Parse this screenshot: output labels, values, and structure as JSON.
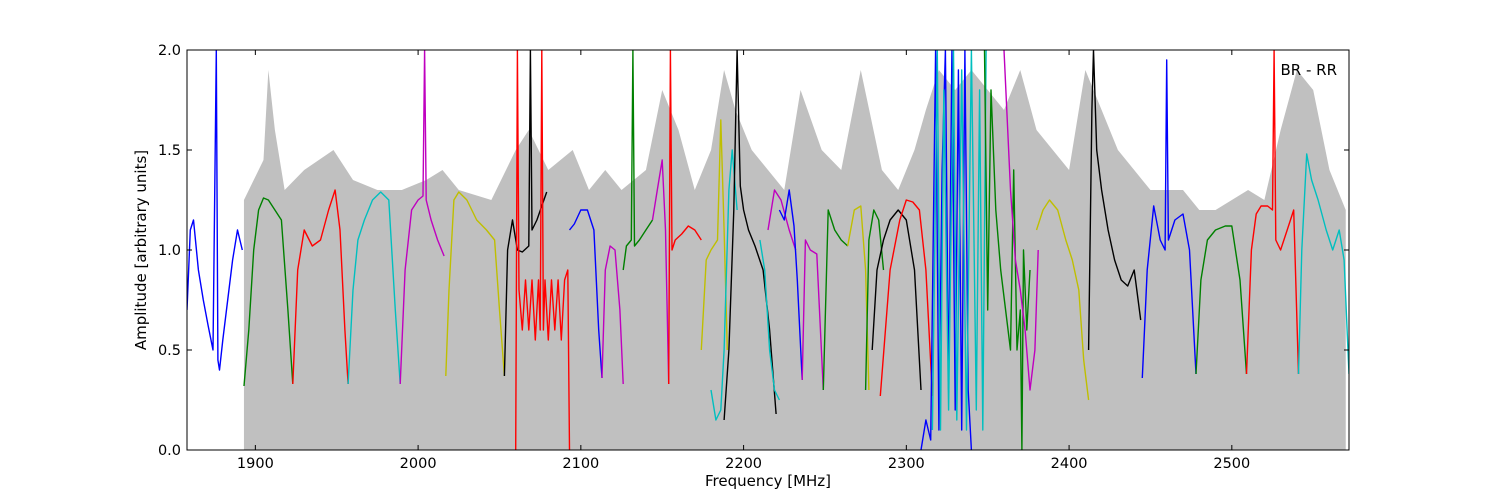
{
  "chart_data": {
    "type": "line",
    "title": "",
    "xlabel": "Frequency [MHz]",
    "ylabel": "Amplitude [arbitrary units]",
    "xlim": [
      1858,
      2572
    ],
    "ylim": [
      0,
      2.0
    ],
    "xticks": [
      1900,
      2000,
      2100,
      2200,
      2300,
      2400,
      2500
    ],
    "yticks": [
      0.0,
      0.5,
      1.0,
      1.5,
      2.0
    ],
    "xtick_labels": [
      "1900",
      "2000",
      "2100",
      "2200",
      "2300",
      "2400",
      "2500"
    ],
    "ytick_labels": [
      "0.0",
      "0.5",
      "1.0",
      "1.5",
      "2.0"
    ],
    "annotation": "BR - RR",
    "grid": false,
    "legend": "none",
    "colors": {
      "background": "#c0c0c0",
      "blue": "#0000ff",
      "green": "#008000",
      "red": "#ff0000",
      "cyan": "#00bfbf",
      "magenta": "#bf00bf",
      "yellow": "#bfbf00",
      "black": "#000000"
    },
    "background_envelope": {
      "color": "#c0c0c0",
      "x": [
        1893,
        1905,
        1908,
        1912,
        1918,
        1930,
        1948,
        1960,
        1975,
        1990,
        2005,
        2015,
        2025,
        2045,
        2060,
        2068,
        2080,
        2095,
        2105,
        2115,
        2125,
        2140,
        2150,
        2160,
        2170,
        2180,
        2188,
        2195,
        2205,
        2215,
        2225,
        2235,
        2248,
        2260,
        2272,
        2285,
        2295,
        2305,
        2312,
        2320,
        2330,
        2340,
        2350,
        2360,
        2370,
        2380,
        2390,
        2400,
        2410,
        2420,
        2430,
        2440,
        2450,
        2460,
        2470,
        2480,
        2490,
        2500,
        2510,
        2520,
        2530,
        2540,
        2550,
        2560,
        2570
      ],
      "y": [
        1.25,
        1.45,
        1.9,
        1.6,
        1.3,
        1.4,
        1.5,
        1.35,
        1.3,
        1.3,
        1.35,
        1.4,
        1.3,
        1.25,
        1.5,
        1.6,
        1.4,
        1.5,
        1.3,
        1.4,
        1.3,
        1.4,
        1.8,
        1.6,
        1.3,
        1.5,
        1.9,
        1.7,
        1.5,
        1.4,
        1.3,
        1.8,
        1.5,
        1.4,
        1.9,
        1.4,
        1.3,
        1.5,
        1.7,
        1.9,
        1.8,
        1.9,
        1.8,
        1.7,
        1.9,
        1.6,
        1.5,
        1.4,
        1.9,
        1.7,
        1.5,
        1.4,
        1.3,
        1.3,
        1.3,
        1.2,
        1.2,
        1.25,
        1.3,
        1.25,
        1.6,
        1.9,
        1.8,
        1.4,
        1.2
      ]
    },
    "series": [
      {
        "color": "#0000ff",
        "x": [
          1858,
          1860,
          1862,
          1865,
          1868,
          1871,
          1874,
          1876,
          1877,
          1878,
          1880,
          1883,
          1886,
          1889,
          1892
        ],
        "y": [
          0.7,
          1.1,
          1.15,
          0.9,
          0.75,
          0.62,
          0.5,
          2.0,
          0.45,
          0.4,
          0.55,
          0.75,
          0.95,
          1.1,
          1.0
        ]
      },
      {
        "color": "#008000",
        "x": [
          1893,
          1896,
          1899,
          1902,
          1905,
          1908,
          1912,
          1916,
          1920,
          1923
        ],
        "y": [
          0.32,
          0.6,
          1.0,
          1.2,
          1.26,
          1.25,
          1.2,
          1.15,
          0.7,
          0.33
        ]
      },
      {
        "color": "#ff0000",
        "x": [
          1923,
          1926,
          1930,
          1935,
          1940,
          1945,
          1949,
          1952,
          1955,
          1957
        ],
        "y": [
          0.33,
          0.9,
          1.1,
          1.02,
          1.05,
          1.2,
          1.3,
          1.1,
          0.6,
          0.33
        ]
      },
      {
        "color": "#00bfbf",
        "x": [
          1957,
          1960,
          1963,
          1967,
          1972,
          1977,
          1982,
          1986,
          1989
        ],
        "y": [
          0.33,
          0.8,
          1.05,
          1.15,
          1.25,
          1.29,
          1.25,
          0.7,
          0.33
        ]
      },
      {
        "color": "#bf00bf",
        "x": [
          1989,
          1992,
          1996,
          2000,
          2003,
          2004,
          2005,
          2008,
          2012,
          2016
        ],
        "y": [
          0.33,
          0.9,
          1.2,
          1.25,
          1.27,
          2.0,
          1.25,
          1.15,
          1.05,
          0.97
        ]
      },
      {
        "color": "#bfbf00",
        "x": [
          2017,
          2019,
          2022,
          2025,
          2030,
          2036,
          2042,
          2047,
          2050,
          2053
        ],
        "y": [
          0.37,
          0.8,
          1.25,
          1.29,
          1.25,
          1.15,
          1.1,
          1.05,
          0.7,
          0.37
        ]
      },
      {
        "color": "#000000",
        "x": [
          2053,
          2055,
          2058,
          2061,
          2064,
          2068,
          2069,
          2070,
          2073,
          2076,
          2079
        ],
        "y": [
          0.37,
          1.0,
          1.15,
          1.0,
          0.99,
          1.02,
          2.0,
          1.1,
          1.15,
          1.22,
          1.29
        ]
      },
      {
        "color": "#ff0000",
        "x": [
          2060,
          2061,
          2062,
          2064,
          2066,
          2068,
          2070,
          2072,
          2074,
          2075,
          2076,
          2077,
          2078,
          2080,
          2082,
          2084,
          2086,
          2088,
          2090,
          2092,
          2093
        ],
        "y": [
          0.0,
          2.0,
          0.8,
          0.6,
          0.85,
          0.6,
          0.85,
          0.55,
          0.85,
          0.6,
          2.0,
          0.6,
          0.85,
          0.55,
          0.85,
          0.6,
          0.85,
          0.55,
          0.85,
          0.9,
          0.0
        ]
      },
      {
        "color": "#0000ff",
        "x": [
          2093,
          2096,
          2100,
          2104,
          2108,
          2111,
          2113
        ],
        "y": [
          1.1,
          1.13,
          1.2,
          1.2,
          1.1,
          0.6,
          0.36
        ]
      },
      {
        "color": "#bf00bf",
        "x": [
          2113,
          2115,
          2118,
          2121,
          2124,
          2126
        ],
        "y": [
          0.36,
          0.9,
          1.02,
          1.0,
          0.7,
          0.33
        ]
      },
      {
        "color": "#008000",
        "x": [
          2126,
          2128,
          2131,
          2132,
          2133,
          2136,
          2140,
          2144
        ],
        "y": [
          0.9,
          1.02,
          1.05,
          2.0,
          1.02,
          1.05,
          1.1,
          1.15
        ]
      },
      {
        "color": "#bf00bf",
        "x": [
          2144,
          2147,
          2150,
          2152,
          2154
        ],
        "y": [
          1.15,
          1.3,
          1.45,
          1.1,
          0.33
        ]
      },
      {
        "color": "#ff0000",
        "x": [
          2154,
          2155,
          2156,
          2158,
          2162,
          2166,
          2170,
          2174
        ],
        "y": [
          0.33,
          2.0,
          1.0,
          1.05,
          1.08,
          1.12,
          1.1,
          1.05
        ]
      },
      {
        "color": "#bfbf00",
        "x": [
          2174,
          2177,
          2180,
          2184,
          2186,
          2188,
          2190
        ],
        "y": [
          0.5,
          0.95,
          1.0,
          1.05,
          1.65,
          1.1,
          0.5
        ]
      },
      {
        "color": "#00bfbf",
        "x": [
          2180,
          2183,
          2186,
          2188,
          2191,
          2193,
          2196
        ],
        "y": [
          0.3,
          0.15,
          0.2,
          0.5,
          1.3,
          1.5,
          1.2
        ]
      },
      {
        "color": "#000000",
        "x": [
          2188,
          2191,
          2194,
          2196,
          2198,
          2200,
          2203,
          2207,
          2212,
          2216,
          2220
        ],
        "y": [
          0.15,
          0.5,
          1.2,
          2.0,
          1.32,
          1.2,
          1.1,
          1.02,
          0.9,
          0.6,
          0.18
        ]
      },
      {
        "color": "#00bfbf",
        "x": [
          2210,
          2213,
          2216,
          2219,
          2222
        ],
        "y": [
          1.05,
          0.9,
          0.5,
          0.3,
          0.25
        ]
      },
      {
        "color": "#bf00bf",
        "x": [
          2215,
          2219,
          2223,
          2228,
          2232
        ],
        "y": [
          1.1,
          1.3,
          1.25,
          1.1,
          1.0
        ]
      },
      {
        "color": "#0000ff",
        "x": [
          2222,
          2225,
          2228,
          2231,
          2233,
          2236
        ],
        "y": [
          1.2,
          1.15,
          1.3,
          1.12,
          0.85,
          0.35
        ]
      },
      {
        "color": "#bf00bf",
        "x": [
          2236,
          2238,
          2241,
          2245,
          2249
        ],
        "y": [
          0.35,
          1.05,
          1.0,
          0.98,
          0.3
        ]
      },
      {
        "color": "#008000",
        "x": [
          2249,
          2252,
          2256,
          2260,
          2264
        ],
        "y": [
          0.3,
          1.2,
          1.1,
          1.05,
          1.02
        ]
      },
      {
        "color": "#bfbf00",
        "x": [
          2264,
          2268,
          2272,
          2275,
          2277
        ],
        "y": [
          1.02,
          1.2,
          1.22,
          0.9,
          0.3
        ]
      },
      {
        "color": "#008000",
        "x": [
          2275,
          2277,
          2280,
          2283,
          2286
        ],
        "y": [
          0.3,
          1.05,
          1.2,
          1.15,
          0.9
        ]
      },
      {
        "color": "#000000",
        "x": [
          2279,
          2282,
          2286,
          2290,
          2295,
          2300,
          2305,
          2309
        ],
        "y": [
          0.5,
          0.9,
          1.05,
          1.15,
          1.2,
          1.15,
          0.9,
          0.3
        ]
      },
      {
        "color": "#ff0000",
        "x": [
          2284,
          2290,
          2296,
          2300,
          2304,
          2308,
          2312,
          2316
        ],
        "y": [
          0.27,
          0.9,
          1.15,
          1.25,
          1.24,
          1.2,
          0.9,
          0.27
        ]
      },
      {
        "color": "#0000ff",
        "x": [
          2309,
          2312,
          2315,
          2318,
          2320,
          2322,
          2324,
          2326,
          2328,
          2330,
          2332,
          2334,
          2336,
          2338,
          2340
        ],
        "y": [
          0.0,
          0.15,
          0.05,
          2.0,
          0.1,
          1.4,
          2.0,
          0.3,
          2.0,
          0.2,
          1.9,
          0.1,
          2.0,
          0.3,
          0.0
        ]
      },
      {
        "color": "#00bfbf",
        "x": [
          2316,
          2319,
          2321,
          2323,
          2326,
          2329,
          2331,
          2334,
          2337,
          2340,
          2343,
          2345,
          2347,
          2349
        ],
        "y": [
          0.1,
          2.0,
          0.1,
          1.8,
          0.2,
          2.0,
          0.15,
          1.9,
          0.1,
          2.0,
          0.2,
          1.8,
          0.1,
          2.0
        ]
      },
      {
        "color": "#008000",
        "x": [
          2348,
          2350,
          2352,
          2355,
          2358,
          2361,
          2364,
          2366,
          2368,
          2370,
          2371,
          2372,
          2374,
          2376
        ],
        "y": [
          2.0,
          0.7,
          1.8,
          1.2,
          0.9,
          0.7,
          0.5,
          1.4,
          0.5,
          0.7,
          0.0,
          1.0,
          0.6,
          0.9
        ]
      },
      {
        "color": "#bf00bf",
        "x": [
          2360,
          2364,
          2367,
          2370,
          2373,
          2376,
          2379,
          2381
        ],
        "y": [
          2.0,
          1.3,
          0.95,
          0.8,
          0.6,
          0.3,
          0.5,
          1.0
        ]
      },
      {
        "color": "#bfbf00",
        "x": [
          2380,
          2384,
          2388,
          2393,
          2398,
          2402,
          2406,
          2409,
          2412
        ],
        "y": [
          1.1,
          1.2,
          1.25,
          1.2,
          1.05,
          0.95,
          0.8,
          0.45,
          0.25
        ]
      },
      {
        "color": "#000000",
        "x": [
          2412,
          2414,
          2415,
          2417,
          2420,
          2424,
          2428,
          2432,
          2436,
          2440,
          2444
        ],
        "y": [
          0.5,
          1.7,
          2.0,
          1.5,
          1.3,
          1.1,
          0.95,
          0.85,
          0.82,
          0.9,
          0.65
        ]
      },
      {
        "color": "#0000ff",
        "x": [
          2445,
          2448,
          2452,
          2456,
          2459,
          2460,
          2461,
          2465,
          2470,
          2474,
          2478
        ],
        "y": [
          0.36,
          0.9,
          1.22,
          1.05,
          1.0,
          1.95,
          1.05,
          1.15,
          1.18,
          1.0,
          0.38
        ]
      },
      {
        "color": "#008000",
        "x": [
          2478,
          2481,
          2485,
          2490,
          2496,
          2500,
          2505,
          2509
        ],
        "y": [
          0.38,
          0.85,
          1.05,
          1.1,
          1.12,
          1.12,
          0.85,
          0.38
        ]
      },
      {
        "color": "#ff0000",
        "x": [
          2509,
          2512,
          2515,
          2518,
          2522,
          2525,
          2526,
          2527,
          2530,
          2534,
          2538,
          2541
        ],
        "y": [
          0.38,
          1.0,
          1.18,
          1.22,
          1.22,
          1.2,
          2.0,
          1.05,
          1.0,
          1.1,
          1.2,
          0.38
        ]
      },
      {
        "color": "#00bfbf",
        "x": [
          2541,
          2543,
          2546,
          2549,
          2553,
          2558,
          2562,
          2566,
          2569,
          2572
        ],
        "y": [
          0.38,
          1.0,
          1.48,
          1.35,
          1.25,
          1.1,
          1.0,
          1.1,
          0.95,
          0.38
        ]
      }
    ]
  }
}
